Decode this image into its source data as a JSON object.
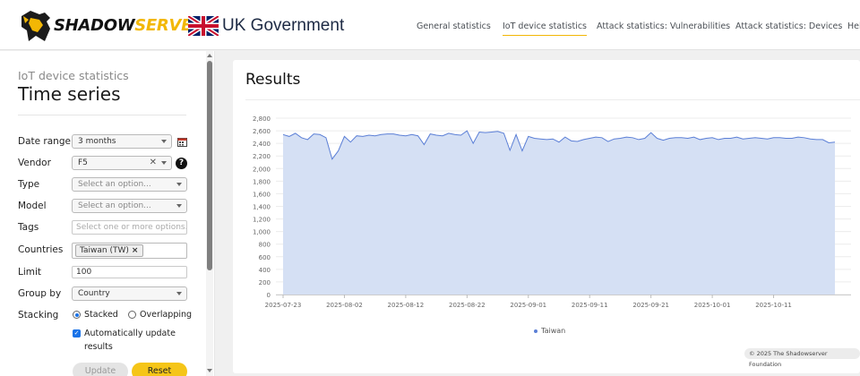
{
  "header": {
    "logo_part1": "SHADOW",
    "logo_part2": "SERVER",
    "partner": "UK Government",
    "nav": [
      {
        "label": "General statistics",
        "active": false
      },
      {
        "label": "IoT device statistics",
        "active": true
      },
      {
        "label": "Attack statistics: Vulnerabilities",
        "active": false
      },
      {
        "label": "Attack statistics: Devices",
        "active": false
      },
      {
        "label": "Hel",
        "active": false
      }
    ]
  },
  "sidebar": {
    "subtitle": "IoT device statistics",
    "title": "Time series",
    "date_range": {
      "label": "Date range",
      "value": "3 months"
    },
    "vendor": {
      "label": "Vendor",
      "value": "F5",
      "help": "?"
    },
    "type": {
      "label": "Type",
      "placeholder": "Select an option..."
    },
    "model": {
      "label": "Model",
      "placeholder": "Select an option..."
    },
    "tags": {
      "label": "Tags",
      "placeholder": "Select one or more options..."
    },
    "countries": {
      "label": "Countries",
      "chip": "Taiwan (TW)",
      "chip_remove": "×"
    },
    "limit": {
      "label": "Limit",
      "value": "100"
    },
    "group_by": {
      "label": "Group by",
      "value": "Country"
    },
    "stacking": {
      "label": "Stacking",
      "option1": "Stacked",
      "option2": "Overlapping",
      "selected": "Stacked"
    },
    "auto_update": {
      "label": "Automatically update results",
      "checked": true
    },
    "update_button": "Update",
    "reset_button": "Reset"
  },
  "main": {
    "title": "Results",
    "footer": "© 2025 The Shadowserver Foundation"
  },
  "colors": {
    "accent": "#f5c518",
    "series_fill": "#d5e0f4",
    "series_line": "#5b7fd6"
  },
  "chart_data": {
    "type": "area",
    "ylim": [
      0,
      2800
    ],
    "yticks": [
      "0",
      "200",
      "400",
      "600",
      "800",
      "1,000",
      "1,200",
      "1,400",
      "1,600",
      "1,800",
      "2,000",
      "2,200",
      "2,400",
      "2,600",
      "2,800"
    ],
    "xticks": [
      "2025-07-23",
      "2025-08-02",
      "2025-08-12",
      "2025-08-22",
      "2025-09-01",
      "2025-09-11",
      "2025-09-21",
      "2025-10-01",
      "2025-10-11"
    ],
    "grid": true,
    "legend": "bottom",
    "series": [
      {
        "name": "Taiwan",
        "x": [
          "2025-07-23",
          "2025-07-24",
          "2025-07-25",
          "2025-07-26",
          "2025-07-27",
          "2025-07-28",
          "2025-07-29",
          "2025-07-30",
          "2025-07-31",
          "2025-08-01",
          "2025-08-02",
          "2025-08-03",
          "2025-08-04",
          "2025-08-05",
          "2025-08-06",
          "2025-08-07",
          "2025-08-08",
          "2025-08-09",
          "2025-08-10",
          "2025-08-11",
          "2025-08-12",
          "2025-08-13",
          "2025-08-14",
          "2025-08-15",
          "2025-08-16",
          "2025-08-17",
          "2025-08-18",
          "2025-08-19",
          "2025-08-20",
          "2025-08-21",
          "2025-08-22",
          "2025-08-23",
          "2025-08-24",
          "2025-08-25",
          "2025-08-26",
          "2025-08-27",
          "2025-08-28",
          "2025-08-29",
          "2025-08-30",
          "2025-08-31",
          "2025-09-01",
          "2025-09-02",
          "2025-09-03",
          "2025-09-04",
          "2025-09-05",
          "2025-09-06",
          "2025-09-07",
          "2025-09-08",
          "2025-09-09",
          "2025-09-10",
          "2025-09-11",
          "2025-09-12",
          "2025-09-13",
          "2025-09-14",
          "2025-09-15",
          "2025-09-16",
          "2025-09-17",
          "2025-09-18",
          "2025-09-19",
          "2025-09-20",
          "2025-09-21",
          "2025-09-22",
          "2025-09-23",
          "2025-09-24",
          "2025-09-25",
          "2025-09-26",
          "2025-09-27",
          "2025-09-28",
          "2025-09-29",
          "2025-09-30",
          "2025-10-01",
          "2025-10-02",
          "2025-10-03",
          "2025-10-04",
          "2025-10-05",
          "2025-10-06",
          "2025-10-07",
          "2025-10-08",
          "2025-10-09",
          "2025-10-10",
          "2025-10-11",
          "2025-10-12",
          "2025-10-13",
          "2025-10-14",
          "2025-10-15",
          "2025-10-16",
          "2025-10-17",
          "2025-10-18",
          "2025-10-19",
          "2025-10-20",
          "2025-10-21"
        ],
        "values": [
          2540,
          2510,
          2560,
          2490,
          2460,
          2550,
          2540,
          2490,
          2150,
          2280,
          2510,
          2420,
          2520,
          2510,
          2530,
          2520,
          2540,
          2550,
          2550,
          2530,
          2520,
          2540,
          2520,
          2380,
          2550,
          2530,
          2520,
          2560,
          2540,
          2530,
          2600,
          2400,
          2580,
          2570,
          2580,
          2590,
          2560,
          2290,
          2540,
          2280,
          2510,
          2480,
          2470,
          2460,
          2470,
          2420,
          2500,
          2440,
          2430,
          2460,
          2480,
          2500,
          2490,
          2430,
          2470,
          2480,
          2500,
          2490,
          2460,
          2480,
          2570,
          2480,
          2450,
          2480,
          2490,
          2490,
          2480,
          2500,
          2460,
          2480,
          2490,
          2460,
          2480,
          2480,
          2500,
          2470,
          2480,
          2490,
          2480,
          2470,
          2490,
          2490,
          2480,
          2480,
          2500,
          2490,
          2470,
          2460,
          2460,
          2410,
          2420
        ]
      }
    ]
  }
}
